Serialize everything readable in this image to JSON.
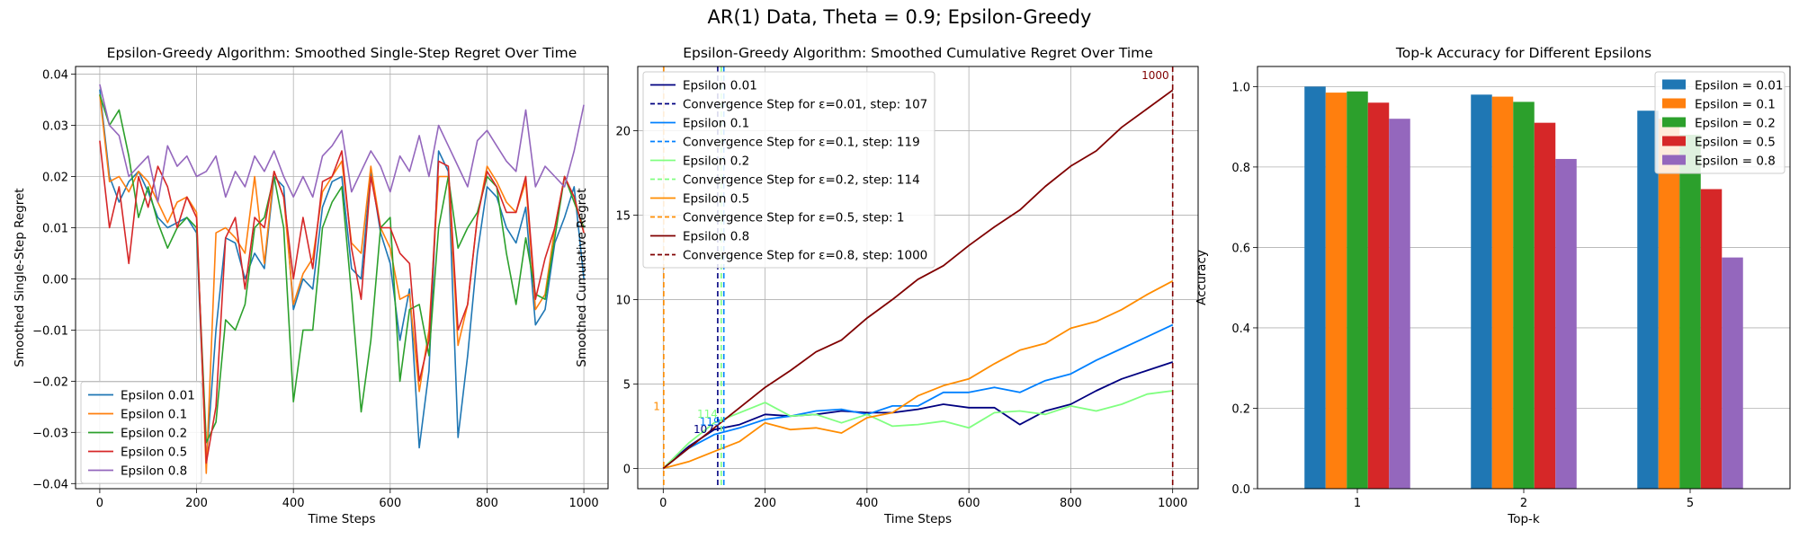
{
  "suptitle": "AR(1) Data, Theta = 0.9; Epsilon-Greedy",
  "chart_data": [
    {
      "type": "line",
      "title": "Epsilon-Greedy Algorithm: Smoothed Single-Step Regret Over Time",
      "xlabel": "Time Steps",
      "ylabel": "Smoothed Single-Step Regret",
      "xlim": [
        -50,
        1050
      ],
      "ylim": [
        -0.041,
        0.0415
      ],
      "xticks": [
        0,
        200,
        400,
        600,
        800,
        1000
      ],
      "yticks": [
        -0.04,
        -0.03,
        -0.02,
        -0.01,
        0.0,
        0.01,
        0.02,
        0.03,
        0.04
      ],
      "ytick_labels": [
        "−0.04",
        "−0.03",
        "−0.02",
        "−0.01",
        "0.00",
        "0.01",
        "0.02",
        "0.03",
        "0.04"
      ],
      "grid": true,
      "legend": "lower left",
      "series": [
        {
          "name": "Epsilon 0.01",
          "color": "#1f77b4",
          "x": [
            0,
            20,
            40,
            60,
            80,
            100,
            120,
            140,
            160,
            180,
            200,
            220,
            240,
            260,
            280,
            300,
            320,
            340,
            360,
            380,
            400,
            420,
            440,
            460,
            480,
            500,
            520,
            540,
            560,
            580,
            600,
            620,
            640,
            660,
            680,
            700,
            720,
            740,
            760,
            780,
            800,
            820,
            840,
            860,
            880,
            900,
            920,
            940,
            960,
            980,
            1000
          ],
          "y": [
            0.037,
            0.02,
            0.015,
            0.019,
            0.021,
            0.017,
            0.012,
            0.01,
            0.011,
            0.012,
            0.009,
            -0.036,
            -0.01,
            0.008,
            0.007,
            0.0,
            0.005,
            0.002,
            0.02,
            0.018,
            -0.006,
            0.0,
            -0.002,
            0.014,
            0.019,
            0.02,
            0.002,
            0.0,
            0.021,
            0.009,
            0.003,
            -0.012,
            -0.002,
            -0.033,
            -0.018,
            0.025,
            0.021,
            -0.031,
            -0.015,
            0.005,
            0.018,
            0.016,
            0.01,
            0.007,
            0.014,
            -0.009,
            -0.006,
            0.007,
            0.012,
            0.018,
            0.0
          ]
        },
        {
          "name": "Epsilon 0.1",
          "color": "#ff7f0e",
          "x": [
            0,
            20,
            40,
            60,
            80,
            100,
            120,
            140,
            160,
            180,
            200,
            220,
            240,
            260,
            280,
            300,
            320,
            340,
            360,
            380,
            400,
            420,
            440,
            460,
            480,
            500,
            520,
            540,
            560,
            580,
            600,
            620,
            640,
            660,
            680,
            700,
            720,
            740,
            760,
            780,
            800,
            820,
            840,
            860,
            880,
            900,
            920,
            940,
            960,
            980,
            1000
          ],
          "y": [
            0.036,
            0.019,
            0.02,
            0.017,
            0.021,
            0.019,
            0.015,
            0.011,
            0.015,
            0.016,
            0.013,
            -0.038,
            0.009,
            0.01,
            0.008,
            0.005,
            0.02,
            0.003,
            0.021,
            0.016,
            -0.005,
            0.001,
            0.004,
            0.017,
            0.02,
            0.023,
            0.007,
            0.005,
            0.022,
            0.01,
            0.006,
            -0.004,
            -0.003,
            -0.022,
            -0.01,
            0.02,
            0.02,
            -0.013,
            -0.005,
            0.012,
            0.022,
            0.019,
            0.015,
            0.013,
            0.019,
            -0.006,
            -0.003,
            0.01,
            0.02,
            0.016,
            0.009
          ]
        },
        {
          "name": "Epsilon 0.2",
          "color": "#2ca02c",
          "x": [
            0,
            20,
            40,
            60,
            80,
            100,
            120,
            140,
            160,
            180,
            200,
            220,
            240,
            260,
            280,
            300,
            320,
            340,
            360,
            380,
            400,
            420,
            440,
            460,
            480,
            500,
            520,
            540,
            560,
            580,
            600,
            620,
            640,
            660,
            680,
            700,
            720,
            740,
            760,
            780,
            800,
            820,
            840,
            860,
            880,
            900,
            920,
            940,
            960,
            980,
            1000
          ],
          "y": [
            0.036,
            0.03,
            0.033,
            0.024,
            0.012,
            0.018,
            0.011,
            0.006,
            0.01,
            0.012,
            0.01,
            -0.032,
            -0.028,
            -0.008,
            -0.01,
            -0.005,
            0.01,
            0.012,
            0.02,
            0.01,
            -0.024,
            -0.01,
            -0.01,
            0.01,
            0.015,
            0.018,
            -0.003,
            -0.026,
            -0.012,
            0.01,
            0.012,
            -0.02,
            -0.006,
            -0.005,
            -0.015,
            0.01,
            0.02,
            0.006,
            0.01,
            0.013,
            0.02,
            0.018,
            0.005,
            -0.005,
            0.008,
            -0.003,
            -0.004,
            0.008,
            0.02,
            0.015,
            0.01
          ]
        },
        {
          "name": "Epsilon 0.5",
          "color": "#d62728",
          "x": [
            0,
            20,
            40,
            60,
            80,
            100,
            120,
            140,
            160,
            180,
            200,
            220,
            240,
            260,
            280,
            300,
            320,
            340,
            360,
            380,
            400,
            420,
            440,
            460,
            480,
            500,
            520,
            540,
            560,
            580,
            600,
            620,
            640,
            660,
            680,
            700,
            720,
            740,
            760,
            780,
            800,
            820,
            840,
            860,
            880,
            900,
            920,
            940,
            960,
            980,
            1000
          ],
          "y": [
            0.027,
            0.01,
            0.018,
            0.003,
            0.02,
            0.014,
            0.022,
            0.018,
            0.01,
            0.016,
            0.012,
            -0.036,
            -0.025,
            0.008,
            0.012,
            -0.002,
            0.012,
            0.01,
            0.021,
            0.016,
            0.0,
            0.012,
            0.002,
            0.019,
            0.02,
            0.025,
            0.006,
            -0.004,
            0.02,
            0.01,
            0.01,
            0.005,
            0.003,
            -0.02,
            -0.012,
            0.023,
            0.022,
            -0.01,
            -0.005,
            0.012,
            0.021,
            0.018,
            0.013,
            0.013,
            0.02,
            -0.004,
            0.004,
            0.01,
            0.02,
            0.016,
            0.009
          ]
        },
        {
          "name": "Epsilon 0.8",
          "color": "#9467bd",
          "x": [
            0,
            20,
            40,
            60,
            80,
            100,
            120,
            140,
            160,
            180,
            200,
            220,
            240,
            260,
            280,
            300,
            320,
            340,
            360,
            380,
            400,
            420,
            440,
            460,
            480,
            500,
            520,
            540,
            560,
            580,
            600,
            620,
            640,
            660,
            680,
            700,
            720,
            740,
            760,
            780,
            800,
            820,
            840,
            860,
            880,
            900,
            920,
            940,
            960,
            980,
            1000
          ],
          "y": [
            0.038,
            0.03,
            0.028,
            0.02,
            0.022,
            0.024,
            0.015,
            0.026,
            0.022,
            0.024,
            0.02,
            0.021,
            0.024,
            0.016,
            0.021,
            0.018,
            0.024,
            0.021,
            0.025,
            0.02,
            0.016,
            0.02,
            0.016,
            0.024,
            0.026,
            0.029,
            0.017,
            0.021,
            0.025,
            0.022,
            0.017,
            0.024,
            0.021,
            0.028,
            0.02,
            0.03,
            0.026,
            0.022,
            0.018,
            0.027,
            0.029,
            0.026,
            0.023,
            0.021,
            0.033,
            0.018,
            0.022,
            0.02,
            0.018,
            0.025,
            0.034
          ]
        }
      ]
    },
    {
      "type": "line",
      "title": "Epsilon-Greedy Algorithm: Smoothed Cumulative Regret Over Time",
      "xlabel": "Time Steps",
      "ylabel": "Smoothed Cumulative Regret",
      "xlim": [
        -50,
        1050
      ],
      "ylim": [
        -1.2,
        23.8
      ],
      "xticks": [
        0,
        200,
        400,
        600,
        800,
        1000
      ],
      "yticks": [
        0,
        5,
        10,
        15,
        20
      ],
      "ytick_labels": [
        "0",
        "5",
        "10",
        "15",
        "20"
      ],
      "grid": true,
      "legend": "upper left",
      "series": [
        {
          "name": "Epsilon 0.01",
          "color": "#000080",
          "x": [
            0,
            50,
            100,
            150,
            200,
            250,
            300,
            350,
            400,
            450,
            500,
            550,
            600,
            650,
            700,
            750,
            800,
            850,
            900,
            950,
            1000
          ],
          "y": [
            0.0,
            1.3,
            2.3,
            2.6,
            3.2,
            3.1,
            3.2,
            3.4,
            3.3,
            3.3,
            3.5,
            3.8,
            3.6,
            3.6,
            2.6,
            3.4,
            3.8,
            4.6,
            5.3,
            5.8,
            6.3
          ]
        },
        {
          "name": "Epsilon 0.1",
          "color": "#0080ff",
          "x": [
            0,
            50,
            100,
            150,
            200,
            250,
            300,
            350,
            400,
            450,
            500,
            550,
            600,
            650,
            700,
            750,
            800,
            850,
            900,
            950,
            1000
          ],
          "y": [
            0.0,
            1.2,
            2.0,
            2.4,
            2.9,
            3.1,
            3.4,
            3.5,
            3.2,
            3.7,
            3.7,
            4.5,
            4.5,
            4.8,
            4.5,
            5.2,
            5.6,
            6.4,
            7.1,
            7.8,
            8.5
          ]
        },
        {
          "name": "Epsilon 0.2",
          "color": "#80ff80",
          "x": [
            0,
            50,
            100,
            150,
            200,
            250,
            300,
            350,
            400,
            450,
            500,
            550,
            600,
            650,
            700,
            750,
            800,
            850,
            900,
            950,
            1000
          ],
          "y": [
            0.0,
            1.5,
            2.7,
            3.3,
            3.9,
            3.1,
            3.2,
            2.7,
            3.2,
            2.5,
            2.6,
            2.8,
            2.4,
            3.3,
            3.4,
            3.2,
            3.7,
            3.4,
            3.8,
            4.4,
            4.6
          ]
        },
        {
          "name": "Epsilon 0.5",
          "color": "#ff8c00",
          "x": [
            0,
            50,
            100,
            150,
            200,
            250,
            300,
            350,
            400,
            450,
            500,
            550,
            600,
            650,
            700,
            750,
            800,
            850,
            900,
            950,
            1000
          ],
          "y": [
            0.0,
            0.4,
            1.0,
            1.6,
            2.7,
            2.3,
            2.4,
            2.1,
            3.0,
            3.3,
            4.3,
            4.9,
            5.3,
            6.2,
            7.0,
            7.4,
            8.3,
            8.7,
            9.4,
            10.3,
            11.1
          ]
        },
        {
          "name": "Epsilon 0.8",
          "color": "#800000",
          "x": [
            0,
            50,
            100,
            150,
            200,
            250,
            300,
            350,
            400,
            450,
            500,
            550,
            600,
            650,
            700,
            750,
            800,
            850,
            900,
            950,
            1000
          ],
          "y": [
            0.0,
            1.2,
            2.4,
            3.6,
            4.8,
            5.8,
            6.9,
            7.6,
            8.9,
            10.0,
            11.2,
            12.0,
            13.2,
            14.3,
            15.3,
            16.7,
            17.9,
            18.8,
            20.2,
            21.3,
            22.4
          ]
        }
      ],
      "vlines": [
        {
          "label": "Convergence Step for ε=0.01, step: 107",
          "x": 107,
          "color": "#000080",
          "annotation": "107"
        },
        {
          "label": "Convergence Step for ε=0.1, step: 119",
          "x": 119,
          "color": "#0080ff",
          "annotation": "119"
        },
        {
          "label": "Convergence Step for ε=0.2, step: 114",
          "x": 114,
          "color": "#80ff80",
          "annotation": "114"
        },
        {
          "label": "Convergence Step for ε=0.5, step: 1",
          "x": 1,
          "color": "#ff8c00",
          "annotation": "1"
        },
        {
          "label": "Convergence Step for ε=0.8, step: 1000",
          "x": 1000,
          "color": "#800000",
          "annotation": "1000"
        }
      ]
    },
    {
      "type": "bar",
      "title": "Top-k Accuracy for Different Epsilons",
      "xlabel": "Top-k",
      "ylabel": "Accuracy",
      "categories": [
        "1",
        "2",
        "5"
      ],
      "ylim": [
        0,
        1.05
      ],
      "yticks": [
        0.0,
        0.2,
        0.4,
        0.6,
        0.8,
        1.0
      ],
      "ytick_labels": [
        "0.0",
        "0.2",
        "0.4",
        "0.6",
        "0.8",
        "1.0"
      ],
      "grid": true,
      "legend": "upper right",
      "series": [
        {
          "name": "Epsilon = 0.01",
          "color": "#1f77b4",
          "values": [
            1.0,
            0.98,
            0.94
          ]
        },
        {
          "name": "Epsilon = 0.1",
          "color": "#ff7f0e",
          "values": [
            0.985,
            0.975,
            0.92
          ]
        },
        {
          "name": "Epsilon = 0.2",
          "color": "#2ca02c",
          "values": [
            0.988,
            0.962,
            0.88
          ]
        },
        {
          "name": "Epsilon = 0.5",
          "color": "#d62728",
          "values": [
            0.96,
            0.91,
            0.745
          ]
        },
        {
          "name": "Epsilon = 0.8",
          "color": "#9467bd",
          "values": [
            0.92,
            0.82,
            0.575
          ]
        }
      ]
    }
  ]
}
